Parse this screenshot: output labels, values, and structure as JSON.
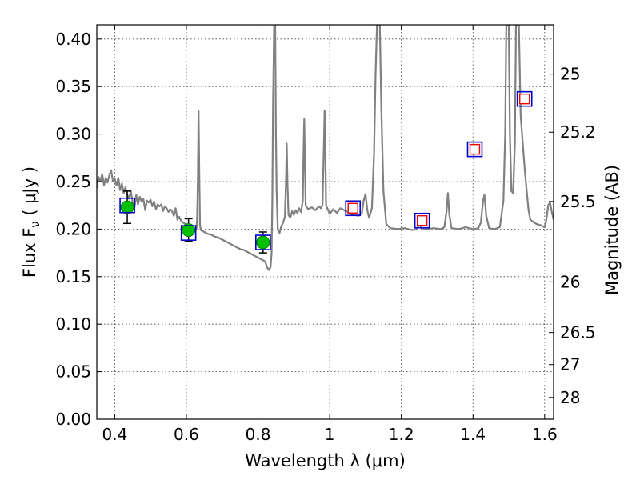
{
  "chart_data": {
    "type": "scatter",
    "title": "",
    "xlabel": "Wavelength  λ (μm)",
    "ylabel": "Flux  F_ν  ( μJy )",
    "ylabel_right": "Magnitude (AB)",
    "xlim": [
      0.35,
      1.625
    ],
    "ylim": [
      0.0,
      0.415
    ],
    "grid": true,
    "x_ticks": [
      0.4,
      0.6,
      0.8,
      1.0,
      1.2,
      1.4,
      1.6
    ],
    "x_tick_labels": [
      "0.4",
      "0.6",
      "0.8",
      "1",
      "1.2",
      "1.4",
      "1.6"
    ],
    "y_ticks": [
      0.0,
      0.05,
      0.1,
      0.15,
      0.2,
      0.25,
      0.3,
      0.35,
      0.4
    ],
    "y_tick_labels": [
      "0.00",
      "0.05",
      "0.10",
      "0.15",
      "0.20",
      "0.25",
      "0.30",
      "0.35",
      "0.40"
    ],
    "right_axis_ticks": [
      {
        "label": "25",
        "flux": 0.3631
      },
      {
        "label": "25.2",
        "flux": 0.302
      },
      {
        "label": "25.5",
        "flux": 0.2291
      },
      {
        "label": "26",
        "flux": 0.1445
      },
      {
        "label": "26.5",
        "flux": 0.0912
      },
      {
        "label": "27",
        "flux": 0.0575
      },
      {
        "label": "28",
        "flux": 0.0229
      }
    ],
    "series": [
      {
        "type": "line",
        "color": "#808080",
        "points": [
          [
            0.35,
            0.243
          ],
          [
            0.355,
            0.255
          ],
          [
            0.36,
            0.25
          ],
          [
            0.365,
            0.258
          ],
          [
            0.37,
            0.246
          ],
          [
            0.375,
            0.254
          ],
          [
            0.38,
            0.249
          ],
          [
            0.385,
            0.257
          ],
          [
            0.39,
            0.262
          ],
          [
            0.395,
            0.25
          ],
          [
            0.4,
            0.253
          ],
          [
            0.405,
            0.246
          ],
          [
            0.41,
            0.254
          ],
          [
            0.415,
            0.241
          ],
          [
            0.42,
            0.248
          ],
          [
            0.425,
            0.238
          ],
          [
            0.43,
            0.244
          ],
          [
            0.435,
            0.236
          ],
          [
            0.44,
            0.232
          ],
          [
            0.445,
            0.24
          ],
          [
            0.45,
            0.228
          ],
          [
            0.455,
            0.222
          ],
          [
            0.46,
            0.236
          ],
          [
            0.465,
            0.226
          ],
          [
            0.47,
            0.234
          ],
          [
            0.475,
            0.229
          ],
          [
            0.48,
            0.232
          ],
          [
            0.485,
            0.22
          ],
          [
            0.49,
            0.23
          ],
          [
            0.495,
            0.228
          ],
          [
            0.5,
            0.231
          ],
          [
            0.505,
            0.224
          ],
          [
            0.51,
            0.229
          ],
          [
            0.515,
            0.221
          ],
          [
            0.52,
            0.226
          ],
          [
            0.525,
            0.224
          ],
          [
            0.53,
            0.226
          ],
          [
            0.535,
            0.219
          ],
          [
            0.54,
            0.224
          ],
          [
            0.545,
            0.222
          ],
          [
            0.55,
            0.218
          ],
          [
            0.555,
            0.221
          ],
          [
            0.56,
            0.219
          ],
          [
            0.565,
            0.214
          ],
          [
            0.57,
            0.222
          ],
          [
            0.575,
            0.21
          ],
          [
            0.58,
            0.213
          ],
          [
            0.585,
            0.209
          ],
          [
            0.59,
            0.207
          ],
          [
            0.595,
            0.206
          ],
          [
            0.6,
            0.204
          ],
          [
            0.605,
            0.203
          ],
          [
            0.61,
            0.202
          ],
          [
            0.615,
            0.202
          ],
          [
            0.62,
            0.201
          ],
          [
            0.625,
            0.2
          ],
          [
            0.628,
            0.2
          ],
          [
            0.63,
            0.21
          ],
          [
            0.632,
            0.25
          ],
          [
            0.634,
            0.324
          ],
          [
            0.636,
            0.26
          ],
          [
            0.638,
            0.205
          ],
          [
            0.64,
            0.199
          ],
          [
            0.65,
            0.197
          ],
          [
            0.66,
            0.195
          ],
          [
            0.67,
            0.194
          ],
          [
            0.68,
            0.192
          ],
          [
            0.69,
            0.191
          ],
          [
            0.7,
            0.189
          ],
          [
            0.71,
            0.187
          ],
          [
            0.72,
            0.185
          ],
          [
            0.73,
            0.183
          ],
          [
            0.74,
            0.181
          ],
          [
            0.75,
            0.179
          ],
          [
            0.76,
            0.178
          ],
          [
            0.77,
            0.176
          ],
          [
            0.78,
            0.174
          ],
          [
            0.79,
            0.172
          ],
          [
            0.8,
            0.17
          ],
          [
            0.81,
            0.168
          ],
          [
            0.82,
            0.166
          ],
          [
            0.825,
            0.16
          ],
          [
            0.83,
            0.157
          ],
          [
            0.835,
            0.16
          ],
          [
            0.838,
            0.175
          ],
          [
            0.84,
            0.23
          ],
          [
            0.842,
            0.33
          ],
          [
            0.845,
            0.415
          ],
          [
            0.848,
            0.415
          ],
          [
            0.85,
            0.3
          ],
          [
            0.852,
            0.24
          ],
          [
            0.855,
            0.2
          ],
          [
            0.86,
            0.196
          ],
          [
            0.865,
            0.203
          ],
          [
            0.87,
            0.207
          ],
          [
            0.875,
            0.213
          ],
          [
            0.878,
            0.25
          ],
          [
            0.88,
            0.29
          ],
          [
            0.882,
            0.25
          ],
          [
            0.885,
            0.215
          ],
          [
            0.89,
            0.212
          ],
          [
            0.895,
            0.219
          ],
          [
            0.9,
            0.215
          ],
          [
            0.905,
            0.22
          ],
          [
            0.91,
            0.217
          ],
          [
            0.915,
            0.222
          ],
          [
            0.92,
            0.218
          ],
          [
            0.925,
            0.23
          ],
          [
            0.927,
            0.28
          ],
          [
            0.929,
            0.316
          ],
          [
            0.931,
            0.27
          ],
          [
            0.933,
            0.225
          ],
          [
            0.94,
            0.221
          ],
          [
            0.95,
            0.223
          ],
          [
            0.96,
            0.22
          ],
          [
            0.97,
            0.224
          ],
          [
            0.975,
            0.222
          ],
          [
            0.98,
            0.225
          ],
          [
            0.984,
            0.29
          ],
          [
            0.986,
            0.325
          ],
          [
            0.988,
            0.28
          ],
          [
            0.99,
            0.225
          ],
          [
            1.0,
            0.216
          ],
          [
            1.01,
            0.221
          ],
          [
            1.02,
            0.217
          ],
          [
            1.03,
            0.222
          ],
          [
            1.04,
            0.22
          ],
          [
            1.05,
            0.218
          ],
          [
            1.06,
            0.216
          ],
          [
            1.07,
            0.215
          ],
          [
            1.08,
            0.214
          ],
          [
            1.09,
            0.217
          ],
          [
            1.095,
            0.23
          ],
          [
            1.1,
            0.237
          ],
          [
            1.105,
            0.22
          ],
          [
            1.11,
            0.212
          ],
          [
            1.118,
            0.222
          ],
          [
            1.124,
            0.28
          ],
          [
            1.128,
            0.36
          ],
          [
            1.132,
            0.415
          ],
          [
            1.14,
            0.415
          ],
          [
            1.144,
            0.33
          ],
          [
            1.15,
            0.24
          ],
          [
            1.158,
            0.205
          ],
          [
            1.17,
            0.201
          ],
          [
            1.19,
            0.2
          ],
          [
            1.21,
            0.201
          ],
          [
            1.23,
            0.199
          ],
          [
            1.245,
            0.2
          ],
          [
            1.25,
            0.209
          ],
          [
            1.255,
            0.201
          ],
          [
            1.27,
            0.2
          ],
          [
            1.29,
            0.201
          ],
          [
            1.31,
            0.2
          ],
          [
            1.32,
            0.202
          ],
          [
            1.326,
            0.218
          ],
          [
            1.33,
            0.238
          ],
          [
            1.334,
            0.215
          ],
          [
            1.34,
            0.201
          ],
          [
            1.36,
            0.2
          ],
          [
            1.38,
            0.202
          ],
          [
            1.4,
            0.2
          ],
          [
            1.415,
            0.201
          ],
          [
            1.422,
            0.207
          ],
          [
            1.428,
            0.23
          ],
          [
            1.432,
            0.236
          ],
          [
            1.437,
            0.214
          ],
          [
            1.445,
            0.201
          ],
          [
            1.46,
            0.2
          ],
          [
            1.475,
            0.202
          ],
          [
            1.485,
            0.23
          ],
          [
            1.49,
            0.3
          ],
          [
            1.493,
            0.415
          ],
          [
            1.5,
            0.415
          ],
          [
            1.503,
            0.3
          ],
          [
            1.507,
            0.24
          ],
          [
            1.512,
            0.238
          ],
          [
            1.517,
            0.29
          ],
          [
            1.52,
            0.415
          ],
          [
            1.528,
            0.415
          ],
          [
            1.533,
            0.32
          ],
          [
            1.54,
            0.285
          ],
          [
            1.545,
            0.26
          ],
          [
            1.55,
            0.24
          ],
          [
            1.555,
            0.22
          ],
          [
            1.56,
            0.21
          ],
          [
            1.57,
            0.207
          ],
          [
            1.58,
            0.205
          ],
          [
            1.59,
            0.204
          ],
          [
            1.6,
            0.202
          ],
          [
            1.605,
            0.21
          ],
          [
            1.61,
            0.225
          ],
          [
            1.615,
            0.228
          ],
          [
            1.62,
            0.218
          ],
          [
            1.625,
            0.21
          ]
        ]
      },
      {
        "type": "errorbar",
        "marker": "circle",
        "color": "#00c000",
        "points": [
          {
            "x": 0.435,
            "y": 0.223,
            "yerr_low": 0.017,
            "yerr_high": 0.017
          },
          {
            "x": 0.606,
            "y": 0.199,
            "yerr_low": 0.012,
            "yerr_high": 0.012
          },
          {
            "x": 0.814,
            "y": 0.186,
            "yerr_low": 0.011,
            "yerr_high": 0.011
          }
        ]
      },
      {
        "type": "scatter",
        "marker": "square",
        "color": "#0000cc",
        "points": [
          [
            0.435,
            0.225
          ],
          [
            0.606,
            0.196
          ],
          [
            0.814,
            0.186
          ],
          [
            1.065,
            0.222
          ],
          [
            1.258,
            0.209
          ],
          [
            1.405,
            0.284
          ],
          [
            1.544,
            0.337
          ]
        ]
      },
      {
        "type": "scatter",
        "marker": "square",
        "color": "#ee0000",
        "points": [
          [
            1.065,
            0.222
          ],
          [
            1.258,
            0.209
          ],
          [
            1.405,
            0.284
          ],
          [
            1.544,
            0.337
          ]
        ]
      }
    ]
  }
}
